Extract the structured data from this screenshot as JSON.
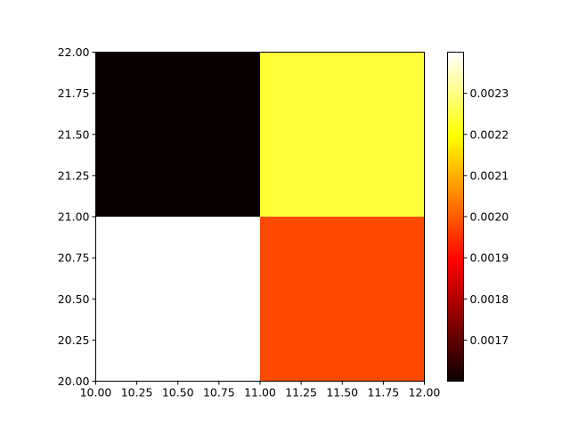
{
  "chart_data": {
    "type": "heatmap",
    "title": "",
    "xlabel": "",
    "ylabel": "",
    "x_edges": [
      10,
      11,
      12
    ],
    "y_edges": [
      20,
      21,
      22
    ],
    "xlim": [
      10,
      12
    ],
    "ylim": [
      20,
      22
    ],
    "x_ticks": [
      "10.00",
      "10.25",
      "10.50",
      "10.75",
      "11.00",
      "11.25",
      "11.50",
      "11.75",
      "12.00"
    ],
    "y_ticks": [
      "20.00",
      "20.25",
      "20.50",
      "20.75",
      "21.00",
      "21.25",
      "21.50",
      "21.75",
      "22.00"
    ],
    "cells": [
      {
        "x": [
          10,
          11
        ],
        "y": [
          20,
          21
        ],
        "value": 0.0024,
        "color": "#ffffff"
      },
      {
        "x": [
          11,
          12
        ],
        "y": [
          20,
          21
        ],
        "value": 0.002,
        "color": "#ff4a00"
      },
      {
        "x": [
          10,
          11
        ],
        "y": [
          21,
          22
        ],
        "value": 0.0016,
        "color": "#0b0000"
      },
      {
        "x": [
          11,
          12
        ],
        "y": [
          21,
          22
        ],
        "value": 0.00222,
        "color": "#ffff37"
      }
    ],
    "colormap": "hot",
    "colorbar": {
      "range": [
        0.0016,
        0.0024
      ],
      "ticks": [
        0.0017,
        0.0018,
        0.0019,
        0.002,
        0.0021,
        0.0022,
        0.0023
      ],
      "tick_labels": [
        "0.0017",
        "0.0018",
        "0.0019",
        "0.0020",
        "0.0021",
        "0.0022",
        "0.0023"
      ]
    },
    "grid": false
  }
}
